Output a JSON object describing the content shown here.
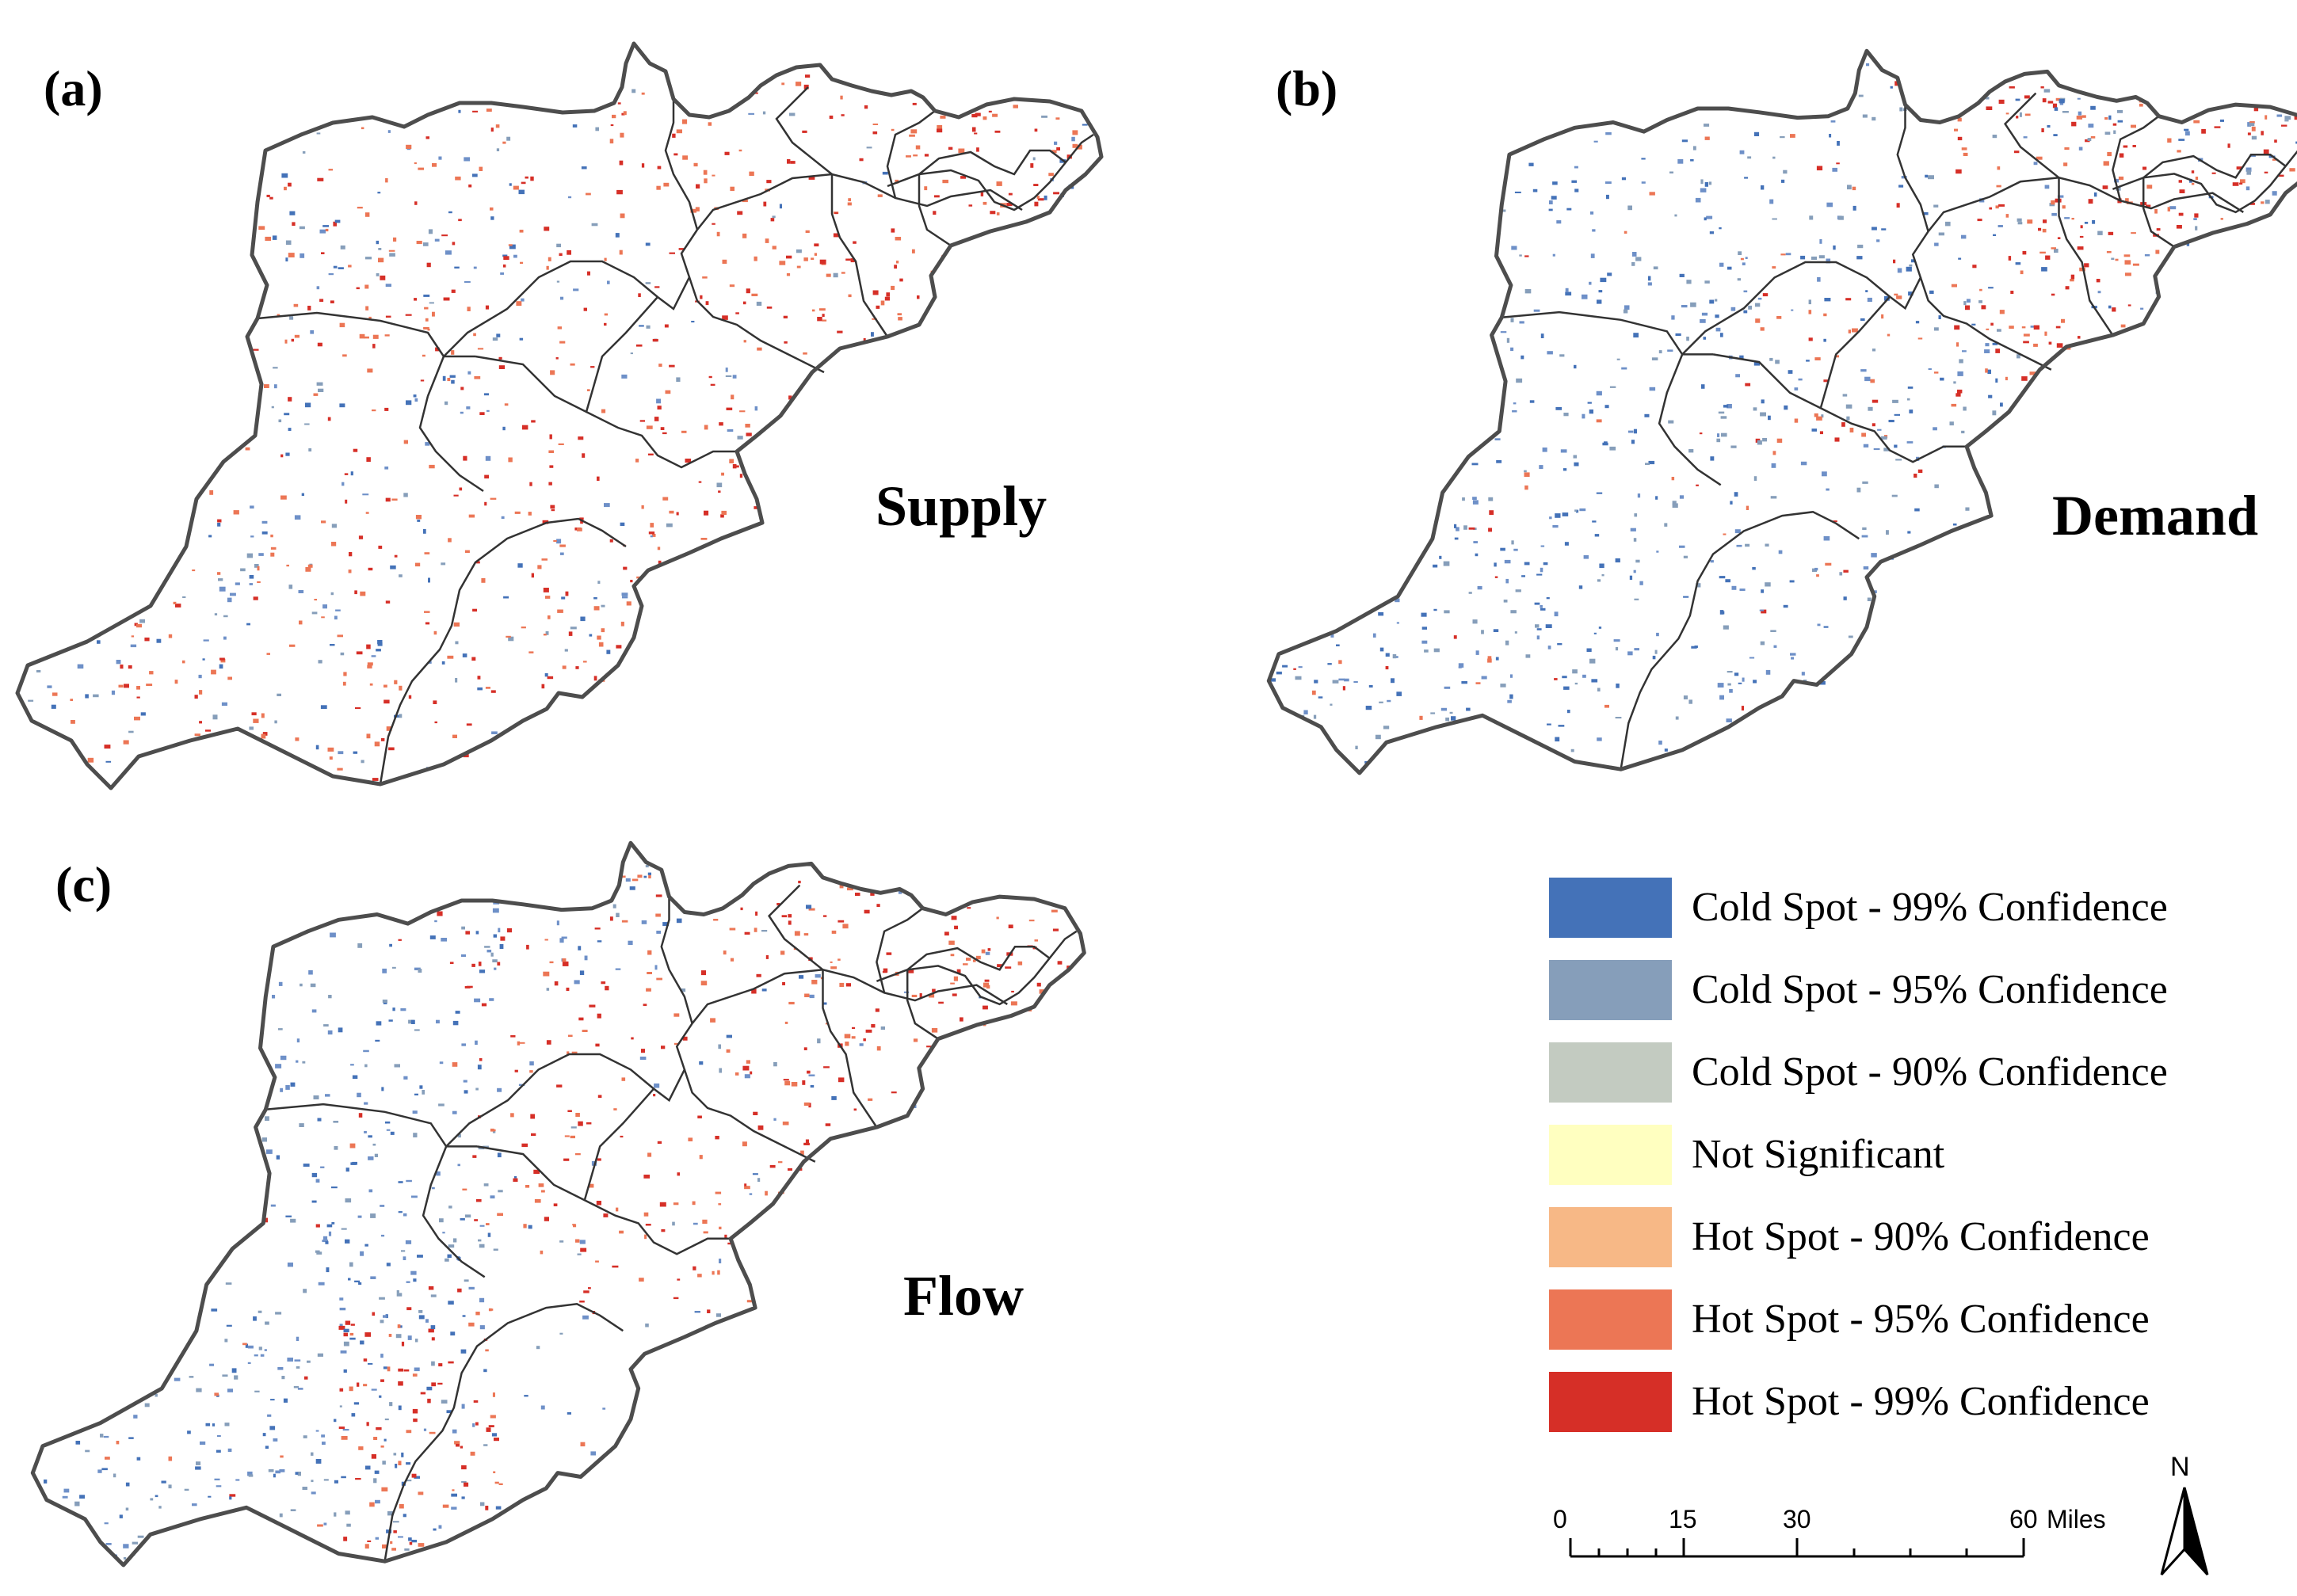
{
  "panels": [
    {
      "label": "(a)",
      "title": "Supply"
    },
    {
      "label": "(b)",
      "title": "Demand"
    },
    {
      "label": "(c)",
      "title": "Flow"
    }
  ],
  "legend": [
    {
      "label": "Cold Spot - 99% Confidence",
      "color": "#4472b8"
    },
    {
      "label": "Cold Spot - 95% Confidence",
      "color": "#869eba"
    },
    {
      "label": "Cold Spot - 90% Confidence",
      "color": "#c3cbc1"
    },
    {
      "label": "Not Significant",
      "color": "#ffffc0"
    },
    {
      "label": "Hot Spot - 90% Confidence",
      "color": "#f7b886"
    },
    {
      "label": "Hot Spot - 95% Confidence",
      "color": "#ec7655"
    },
    {
      "label": "Hot Spot - 99% Confidence",
      "color": "#d62f27"
    }
  ],
  "scale": {
    "ticks": [
      "0",
      "15",
      "30",
      "60"
    ],
    "unit": "Miles"
  },
  "north": {
    "label": "N"
  },
  "colors": {
    "outline": "#4d4d4d",
    "hot": "#d62f27",
    "cold": "#4472b8"
  }
}
